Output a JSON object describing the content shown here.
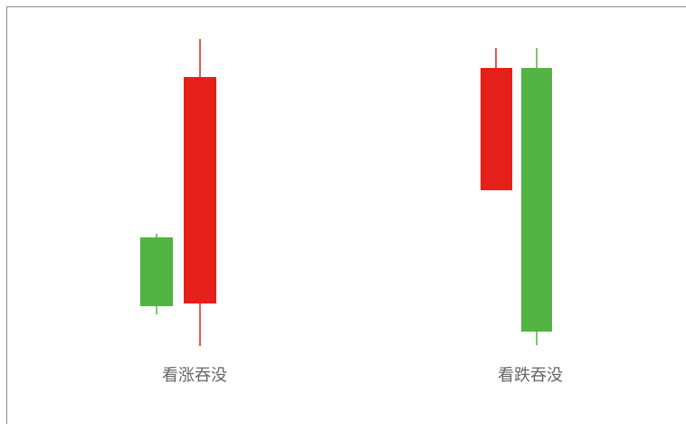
{
  "patterns": [
    {
      "label": "看涨吞没"
    },
    {
      "label": "看跌吞没"
    }
  ]
}
